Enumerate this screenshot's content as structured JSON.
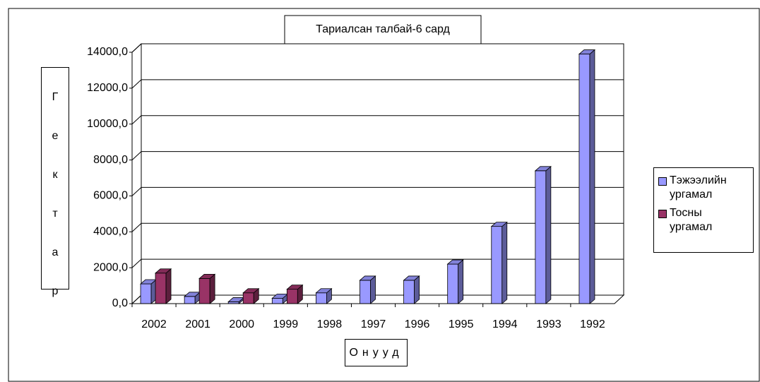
{
  "chart_data": {
    "type": "bar3d",
    "title": "Тариалсан талбай-6 сард",
    "y_label": "Гектар",
    "x_label": "Онууд",
    "categories": [
      "2002",
      "2001",
      "2000",
      "1999",
      "1998",
      "1997",
      "1996",
      "1995",
      "1994",
      "1993",
      "1992"
    ],
    "series": [
      {
        "name": "Тэжээлийн ургамал",
        "color": "#9999ff",
        "values": [
          1100,
          400,
          100,
          300,
          600,
          1300,
          1300,
          2200,
          4300,
          7400,
          13900
        ]
      },
      {
        "name": "Тосны ургамал",
        "color": "#993366",
        "values": [
          1700,
          1400,
          600,
          800,
          null,
          null,
          null,
          null,
          null,
          null,
          null
        ]
      }
    ],
    "ylim": [
      0,
      14000
    ],
    "yticks": [
      {
        "value": 0,
        "label": "0,0"
      },
      {
        "value": 2000,
        "label": "2000,0"
      },
      {
        "value": 4000,
        "label": "4000,0"
      },
      {
        "value": 6000,
        "label": "6000,0"
      },
      {
        "value": 8000,
        "label": "8000,0"
      },
      {
        "value": 10000,
        "label": "10000,0"
      },
      {
        "value": 12000,
        "label": "12000,0"
      },
      {
        "value": 14000,
        "label": "14000,0"
      }
    ],
    "grid": true,
    "legend": "right"
  }
}
